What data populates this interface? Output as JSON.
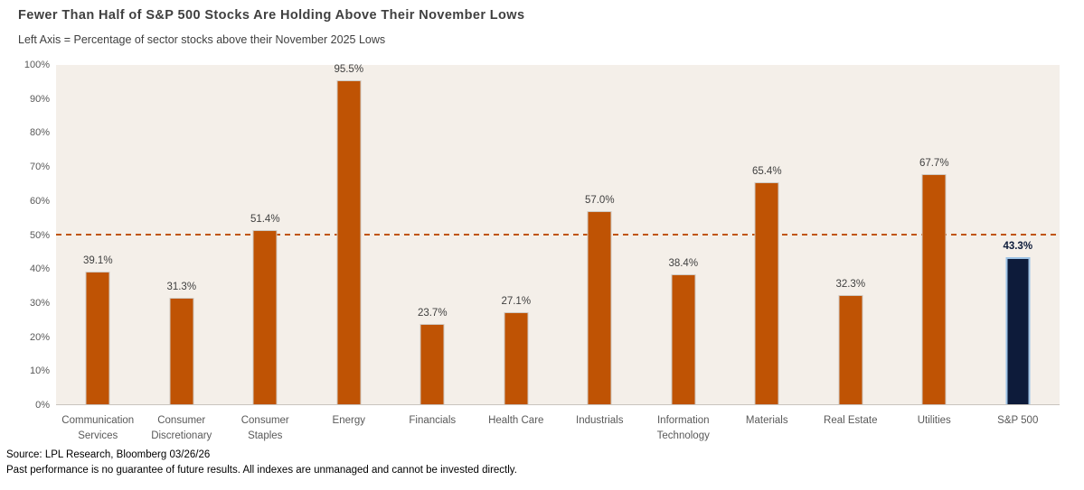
{
  "header": {
    "title": "Fewer Than Half of S&P 500 Stocks Are Holding Above Their November Lows",
    "subtitle": "Left Axis = Percentage of sector stocks above their November 2025 Lows"
  },
  "footer": {
    "source": "Source: LPL Research, Bloomberg 03/26/26",
    "disclaimer": "Past performance is no guarantee of future results. All indexes are unmanaged and cannot be invested directly."
  },
  "chart_data": {
    "type": "bar",
    "title": "Fewer Than Half of S&P 500 Stocks Are Holding Above Their November Lows",
    "subtitle": "Left Axis = Percentage of sector stocks above their November 2025 Lows",
    "categories": [
      "Communication Services",
      "Consumer Discretionary",
      "Consumer Staples",
      "Energy",
      "Financials",
      "Health Care",
      "Industrials",
      "Information Technology",
      "Materials",
      "Real Estate",
      "Utilities",
      "S&P 500"
    ],
    "values": [
      39.1,
      31.3,
      51.4,
      95.5,
      23.7,
      27.1,
      57.0,
      38.4,
      65.4,
      32.3,
      67.7,
      43.3
    ],
    "value_labels": [
      "39.1%",
      "31.3%",
      "51.4%",
      "95.5%",
      "23.7%",
      "27.1%",
      "57.0%",
      "38.4%",
      "65.4%",
      "32.3%",
      "67.7%",
      "43.3%"
    ],
    "highlight_index": 11,
    "xlabel": "",
    "ylabel": "",
    "ylim": [
      0,
      100
    ],
    "yticks": [
      "0%",
      "10%",
      "20%",
      "30%",
      "40%",
      "50%",
      "60%",
      "70%",
      "80%",
      "90%",
      "100%"
    ],
    "grid": false,
    "legend": "none",
    "reference_line": {
      "value": 50,
      "style": "dashed",
      "color": "#c0550a"
    },
    "colors": {
      "bar": "#bf5304",
      "bar_border": "#cfc9c2",
      "highlight_bar": "#0d1b3a",
      "highlight_bar_border": "#9dc3e6",
      "plot_background": "#f4efe9",
      "axis_label": "#595959",
      "value_label": "#3f3f3f",
      "highlight_value_label": "#0d1b3a",
      "title": "#3f3f3f"
    }
  }
}
